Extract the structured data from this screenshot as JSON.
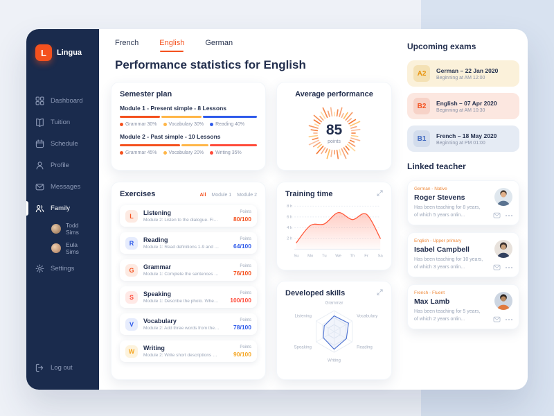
{
  "app": {
    "name": "Lingua",
    "logo_letter": "L"
  },
  "sidebar": {
    "items": [
      {
        "label": "Dashboard"
      },
      {
        "label": "Tuition"
      },
      {
        "label": "Schedule"
      },
      {
        "label": "Profile"
      },
      {
        "label": "Messages"
      },
      {
        "label": "Family"
      },
      {
        "label": "Settings"
      }
    ],
    "family_members": [
      {
        "name": "Todd Sims"
      },
      {
        "name": "Eula Sims"
      }
    ],
    "logout_label": "Log out"
  },
  "tabs": [
    {
      "label": "French"
    },
    {
      "label": "English"
    },
    {
      "label": "German"
    }
  ],
  "page_title": "Performance statistics for English",
  "semester_plan": {
    "title": "Semester plan",
    "modules": [
      {
        "name": "Module 1 - Present simple - 8 Lessons",
        "segments": [
          {
            "label": "Grammar 30%",
            "pct": 30,
            "color": "#f4511e"
          },
          {
            "label": "Vocabulary 30%",
            "pct": 30,
            "color": "#ffb648"
          },
          {
            "label": "Reading 40%",
            "pct": 40,
            "color": "#2f5bea"
          }
        ]
      },
      {
        "name": "Module 2 - Past simple - 10 Lessons",
        "segments": [
          {
            "label": "Grammar 45%",
            "pct": 45,
            "color": "#f4511e"
          },
          {
            "label": "Vocabulary 20%",
            "pct": 20,
            "color": "#ffb648"
          },
          {
            "label": "Writing 35%",
            "pct": 35,
            "color": "#ff4b3a"
          }
        ]
      }
    ]
  },
  "exercises": {
    "title": "Exercises",
    "filters": [
      {
        "label": "All"
      },
      {
        "label": "Module 1"
      },
      {
        "label": "Module 2"
      }
    ],
    "points_label": "Points",
    "rows": [
      {
        "letter": "L",
        "title": "Listening",
        "desc": "Module 2: Listen to the dialogue. Find t...",
        "score": "80/100",
        "tone": "orange"
      },
      {
        "letter": "R",
        "title": "Reading",
        "desc": "Module 1: Read definitions 1-9 and ma...",
        "score": "64/100",
        "tone": "blue"
      },
      {
        "letter": "G",
        "title": "Grammar",
        "desc": "Module 1: Complete the sentences wit...",
        "score": "76/100",
        "tone": "orange"
      },
      {
        "letter": "S",
        "title": "Speaking",
        "desc": "Module 1: Describe the photo. Where ...",
        "score": "100/100",
        "tone": "red"
      },
      {
        "letter": "V",
        "title": "Vocabulary",
        "desc": "Module 2: Add three words from the di...",
        "score": "78/100",
        "tone": "blue"
      },
      {
        "letter": "W",
        "title": "Writing",
        "desc": "Module 2: Write short descriptions of t...",
        "score": "90/100",
        "tone": "amber"
      }
    ]
  },
  "average_performance": {
    "title": "Average performance",
    "value": "85",
    "unit": "points"
  },
  "training_time": {
    "title": "Training time",
    "chart": {
      "type": "area",
      "x": [
        "Su",
        "Mo",
        "Tu",
        "We",
        "Th",
        "Fr",
        "Sa"
      ],
      "values": [
        1.2,
        4.4,
        4.7,
        6.8,
        5.5,
        6.5,
        2.0
      ],
      "ylabel_ticks": [
        "8 h",
        "6 h",
        "4 h",
        "2 h"
      ],
      "ymax": 8,
      "color": "#ff5a3c"
    }
  },
  "developed_skills": {
    "title": "Developed skills",
    "chart": {
      "type": "radar",
      "axes": [
        "Grammar",
        "Vocabulary",
        "Reading",
        "Writing",
        "Speaking",
        "Listening"
      ],
      "values": [
        0.75,
        0.8,
        0.68,
        0.85,
        0.6,
        0.55
      ],
      "max": 1,
      "color": "#4f74d2"
    }
  },
  "upcoming_exams": {
    "title": "Upcoming exams",
    "items": [
      {
        "level": "A2",
        "title": "German – 22 Jan 2020",
        "time": "Beginning at AM 12:00"
      },
      {
        "level": "B2",
        "title": "English – 07 Apr 2020",
        "time": "Beginning at AM 10:30"
      },
      {
        "level": "B1",
        "title": "French – 18 May 2020",
        "time": "Beginning at PM 01:00"
      }
    ]
  },
  "linked_teachers": {
    "title": "Linked teacher",
    "items": [
      {
        "tag": "German - Native",
        "name": "Roger Stevens",
        "desc": "Has been teaching for 8 years, of which 5 years onlin..."
      },
      {
        "tag": "English - Upper primary",
        "name": "Isabel Campbell",
        "desc": "Has been teaching for 10 years, of which 3 years onlin..."
      },
      {
        "tag": "French - Fluent",
        "name": "Max Lamb",
        "desc": "Has been teaching for 5 years, of which 2 years onlin..."
      }
    ]
  },
  "colors": {
    "accent": "#f4511e",
    "blue": "#2f5bea",
    "amber": "#ffb648",
    "red": "#ff4b3a",
    "sidebar": "#1a2b4d"
  }
}
